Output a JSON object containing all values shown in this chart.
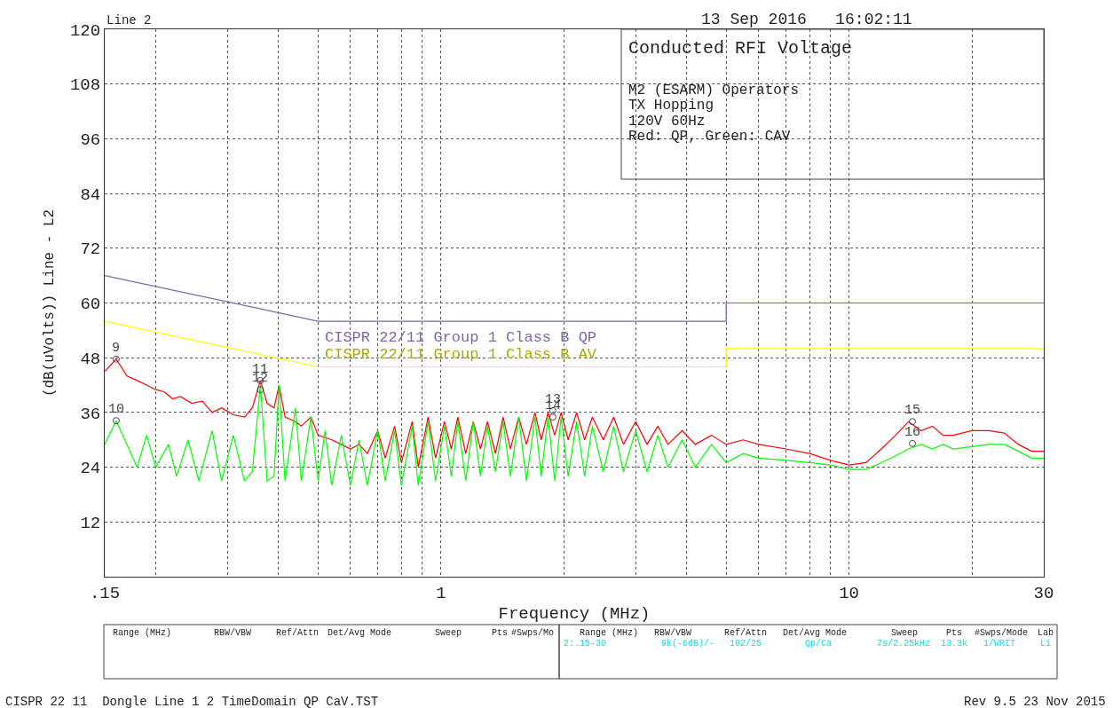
{
  "chart_data": {
    "type": "line",
    "title": "Line 2",
    "xlabel": "Frequency (MHz)",
    "ylabel": "(dB(uVolts)) Line - L2",
    "log": "x",
    "xlim": [
      0.15,
      30
    ],
    "ylim": [
      0,
      120
    ],
    "xticks": [
      {
        "value": 0.15,
        "label": ".15"
      },
      {
        "value": 0.2,
        "label": null
      },
      {
        "value": 0.3,
        "label": null
      },
      {
        "value": 0.4,
        "label": null
      },
      {
        "value": 0.5,
        "label": null
      },
      {
        "value": 0.6,
        "label": null
      },
      {
        "value": 0.7,
        "label": null
      },
      {
        "value": 0.8,
        "label": null
      },
      {
        "value": 0.9,
        "label": null
      },
      1,
      {
        "value": 2,
        "label": null
      },
      {
        "value": 3,
        "label": null
      },
      {
        "value": 4,
        "label": null
      },
      {
        "value": 5,
        "label": null
      },
      {
        "value": 6,
        "label": null
      },
      {
        "value": 7,
        "label": null
      },
      {
        "value": 8,
        "label": null
      },
      {
        "value": 9,
        "label": null
      },
      10,
      {
        "value": 20,
        "label": null
      },
      30
    ],
    "yticks": [
      12,
      24,
      36,
      48,
      60,
      72,
      84,
      96,
      108,
      120
    ],
    "grid": true,
    "legend": false,
    "marker": "none",
    "line_style": "solid",
    "series": [
      {
        "color": "#ff0000",
        "x": [
          0.15,
          0.16,
          0.17,
          0.18,
          0.19,
          0.2,
          0.21,
          0.22,
          0.23,
          0.245,
          0.26,
          0.275,
          0.29,
          0.31,
          0.33,
          0.345,
          0.361,
          0.375,
          0.39,
          0.401,
          0.415,
          0.44,
          0.455,
          0.48,
          0.5,
          0.54,
          0.57,
          0.6,
          0.63,
          0.66,
          0.7,
          0.73,
          0.77,
          0.8,
          0.85,
          0.88,
          0.93,
          0.97,
          1.02,
          1.06,
          1.1,
          1.15,
          1.2,
          1.25,
          1.3,
          1.36,
          1.42,
          1.48,
          1.55,
          1.62,
          1.7,
          1.76,
          1.83,
          1.9,
          1.97,
          2.05,
          2.15,
          2.25,
          2.35,
          2.5,
          2.65,
          2.8,
          3.0,
          3.2,
          3.4,
          3.6,
          3.9,
          4.2,
          4.6,
          5.0,
          5.5,
          6,
          7,
          8,
          9,
          10,
          11,
          12,
          13,
          14,
          15,
          16,
          17,
          18,
          20,
          22,
          24,
          26,
          28,
          30
        ],
        "values": [
          45,
          47.7,
          44,
          43,
          42,
          41,
          40.5,
          39,
          39.5,
          38,
          38.5,
          36,
          37,
          35.5,
          35,
          37,
          43,
          38,
          37,
          42,
          35,
          34,
          33,
          35,
          31,
          30,
          29,
          28,
          29,
          27,
          32,
          26,
          33,
          25,
          34,
          24,
          35,
          26,
          34,
          28,
          35,
          27,
          34,
          28,
          34,
          27,
          35,
          28,
          35,
          29,
          36,
          30,
          36,
          31,
          36,
          30,
          36,
          30,
          35,
          30,
          35,
          29,
          34,
          29,
          33,
          29,
          32,
          29,
          31,
          29,
          30,
          29,
          28,
          27,
          25.5,
          24.5,
          25,
          28,
          31,
          34,
          32,
          33,
          31,
          31,
          32,
          32,
          31.5,
          29,
          27.5,
          27.5
        ]
      },
      {
        "color": "#00ff00",
        "x": [
          0.15,
          0.16,
          0.17,
          0.18,
          0.19,
          0.2,
          0.215,
          0.225,
          0.24,
          0.255,
          0.275,
          0.29,
          0.31,
          0.33,
          0.345,
          0.361,
          0.375,
          0.39,
          0.401,
          0.415,
          0.44,
          0.455,
          0.48,
          0.5,
          0.52,
          0.54,
          0.57,
          0.6,
          0.63,
          0.66,
          0.7,
          0.73,
          0.77,
          0.8,
          0.85,
          0.88,
          0.93,
          0.97,
          1.02,
          1.06,
          1.1,
          1.15,
          1.2,
          1.25,
          1.3,
          1.36,
          1.42,
          1.48,
          1.55,
          1.62,
          1.7,
          1.76,
          1.83,
          1.9,
          1.97,
          2.05,
          2.15,
          2.25,
          2.35,
          2.5,
          2.65,
          2.8,
          3.0,
          3.2,
          3.4,
          3.6,
          3.9,
          4.2,
          4.6,
          5.0,
          5.5,
          6,
          7,
          8,
          9,
          10,
          11,
          12,
          13,
          14,
          15,
          16,
          17,
          18,
          20,
          22,
          24,
          26,
          28,
          30
        ],
        "values": [
          29,
          34.2,
          29,
          24,
          31,
          24,
          29,
          22,
          30,
          21,
          32,
          21,
          31,
          21,
          23,
          42,
          21,
          22,
          42,
          21,
          37,
          21,
          35,
          21,
          32,
          20,
          31,
          20,
          30,
          20,
          32,
          21,
          32,
          20,
          33,
          20,
          34,
          21,
          33,
          22,
          34,
          21,
          34,
          22,
          33,
          23,
          34,
          22,
          35,
          21,
          35,
          22,
          35,
          21,
          35,
          22,
          34,
          22,
          33,
          23,
          33,
          23,
          32,
          23,
          31,
          24,
          30,
          24,
          29,
          25,
          27,
          26,
          25.5,
          25,
          24.5,
          23.5,
          23.5,
          25,
          26.5,
          28,
          29,
          28,
          29,
          28,
          28.5,
          29,
          29,
          27.5,
          26,
          26
        ]
      },
      {
        "name": "CISPR 22/11 Group 1 Class B QP",
        "color": "#8064a8",
        "x": [
          0.15,
          0.5,
          5,
          5,
          30
        ],
        "values": [
          66,
          56,
          56,
          60,
          60
        ]
      },
      {
        "name": "CISPR 22/11 Group 1 Class B AV",
        "color": "#ffff00",
        "x": [
          0.15,
          0.5,
          5,
          5,
          30
        ],
        "values": [
          56,
          46,
          46,
          50,
          50
        ]
      }
    ],
    "annotations": [
      "13 Sep 2016   16:02:11",
      "Conducted RFI Voltage",
      "M2 (ESARM) Operators",
      "TX Hopping",
      "120V 60Hz",
      "Red: QP, Green: CAV",
      "Range (MHz)",
      "RBW/VBW",
      "Ref/Attn",
      "Det/Avg Mode",
      "Sweep",
      "Pts",
      "#Swps/Mo",
      "Range (MHz)",
      "RBW/VBW",
      "Ref/Attn",
      "Det/Avg Mode",
      "Sweep",
      "Pts",
      "#Swps/Mode",
      "Lab",
      "2:.15-30",
      "9k(-6dB)/-",
      "102/25",
      "Qp/Ca",
      "7s/2.25kHz",
      "13.3k",
      "1/WRIT",
      "Li",
      "CISPR 22 11  Dongle Line 1 2 TimeDomain QP CaV.TST",
      "Rev 9.5 23 Nov 2015",
      {
        "text": "9",
        "x": 0.16,
        "y": 47.7
      },
      {
        "text": "10",
        "x": 0.16,
        "y": 34.2
      },
      {
        "text": "11",
        "x": 0.361,
        "y": 43
      },
      {
        "text": "12",
        "x": 0.361,
        "y": 41
      },
      {
        "text": "13",
        "x": 1.88,
        "y": 36.4
      },
      {
        "text": "14",
        "x": 1.88,
        "y": 35
      },
      {
        "text": "15",
        "x": 14.3,
        "y": 34
      },
      {
        "text": "16",
        "x": 14.3,
        "y": 29.2
      }
    ]
  }
}
